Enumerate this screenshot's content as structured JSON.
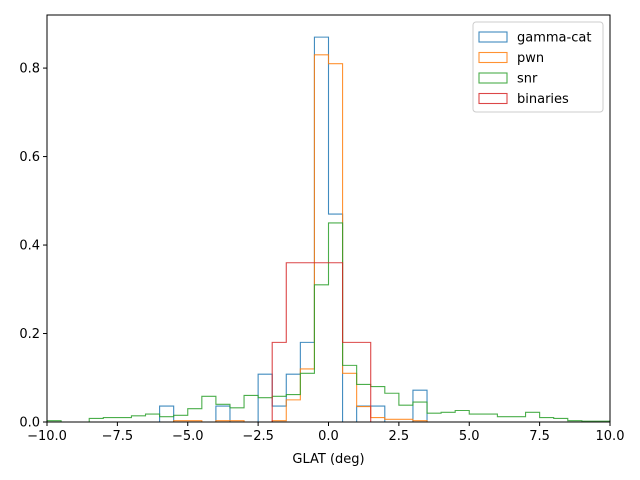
{
  "chart_data": {
    "type": "histogram-step",
    "title": "",
    "xlabel": "GLAT (deg)",
    "ylabel": "",
    "xlim": [
      -10,
      10
    ],
    "ylim": [
      0,
      0.92
    ],
    "xticks": [
      -10.0,
      -7.5,
      -5.0,
      -2.5,
      0.0,
      2.5,
      5.0,
      7.5,
      10.0
    ],
    "xtick_labels": [
      "−10.0",
      "−7.5",
      "−5.0",
      "−2.5",
      "0.0",
      "2.5",
      "5.0",
      "7.5",
      "10.0"
    ],
    "yticks": [
      0.0,
      0.2,
      0.4,
      0.6,
      0.8
    ],
    "ytick_labels": [
      "0.0",
      "0.2",
      "0.4",
      "0.6",
      "0.8"
    ],
    "grid": false,
    "legend_position": "top-right",
    "series": [
      {
        "name": "gamma-cat",
        "color": "#1f77b4",
        "edges": [
          -6.0,
          -5.5,
          -5.0,
          -4.5,
          -4.0,
          -3.5,
          -3.0,
          -2.5,
          -2.0,
          -1.5,
          -1.0,
          -0.5,
          0.0,
          0.5,
          1.0,
          1.5,
          2.0,
          2.5,
          3.0,
          3.5
        ],
        "values": [
          0.036,
          0,
          0,
          0,
          0.036,
          0,
          0,
          0.108,
          0.036,
          0.108,
          0.18,
          0.87,
          0.47,
          0,
          0.036,
          0.036,
          0,
          0,
          0.072
        ]
      },
      {
        "name": "pwn",
        "color": "#ff7f0e",
        "edges": [
          -5.5,
          -5.0,
          -4.5,
          -4.0,
          -3.5,
          -3.0,
          -2.5,
          -2.0,
          -1.5,
          -1.0,
          -0.5,
          0.0,
          0.5,
          1.0,
          1.5,
          2.0,
          2.5,
          3.0,
          3.5
        ],
        "values": [
          0.003,
          0.003,
          0,
          0.003,
          0.003,
          0,
          0,
          0.003,
          0.05,
          0.12,
          0.83,
          0.81,
          0.11,
          0.035,
          0.01,
          0.006,
          0.006,
          0.003
        ]
      },
      {
        "name": "snr",
        "color": "#2ca02c",
        "edges": [
          -10.0,
          -9.5,
          -9.0,
          -8.5,
          -8.0,
          -7.5,
          -7.0,
          -6.5,
          -6.0,
          -5.5,
          -5.0,
          -4.5,
          -4.0,
          -3.5,
          -3.0,
          -2.5,
          -2.0,
          -1.5,
          -1.0,
          -0.5,
          0.0,
          0.5,
          1.0,
          1.5,
          2.0,
          2.5,
          3.0,
          3.5,
          4.0,
          4.5,
          5.0,
          5.5,
          6.0,
          6.5,
          7.0,
          7.5,
          8.0,
          8.5,
          9.0,
          9.5,
          10.0
        ],
        "values": [
          0.003,
          0,
          0,
          0.008,
          0.01,
          0.01,
          0.014,
          0.018,
          0.012,
          0.015,
          0.03,
          0.058,
          0.04,
          0.032,
          0.06,
          0.055,
          0.058,
          0.062,
          0.11,
          0.31,
          0.45,
          0.128,
          0.085,
          0.08,
          0.065,
          0.038,
          0.045,
          0.02,
          0.022,
          0.026,
          0.018,
          0.018,
          0.012,
          0.012,
          0.022,
          0.01,
          0.008,
          0.003,
          0.002,
          0.002
        ]
      },
      {
        "name": "binaries",
        "color": "#d62728",
        "edges": [
          -2.0,
          -1.5,
          -1.0,
          -0.5,
          0.0,
          0.5,
          1.0,
          1.5
        ],
        "values": [
          0.18,
          0.36,
          0.36,
          0.36,
          0.36,
          0.18,
          0.18
        ]
      }
    ]
  }
}
